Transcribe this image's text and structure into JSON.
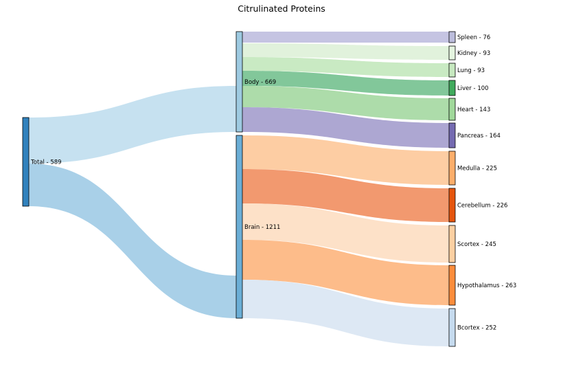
{
  "title": "Citrulinated Proteins",
  "nodes": [
    {
      "id": "total",
      "label": "Total - 589",
      "color": "#3182bd"
    },
    {
      "id": "body",
      "label": "Body - 669",
      "color": "#9ecae1"
    },
    {
      "id": "brain",
      "label": "Brain - 1211",
      "color": "#6baed6"
    },
    {
      "id": "spleen",
      "label": "Spleen - 76",
      "color": "#bcbddc"
    },
    {
      "id": "kidney",
      "label": "Kidney - 93",
      "color": "#e5f5e0"
    },
    {
      "id": "lung",
      "label": "Lung - 93",
      "color": "#c7e9c0"
    },
    {
      "id": "liver",
      "label": "Liver - 100",
      "color": "#41ab5d"
    },
    {
      "id": "heart",
      "label": "Heart - 143",
      "color": "#a1d99b"
    },
    {
      "id": "pancreas",
      "label": "Pancreas - 164",
      "color": "#756bb1"
    },
    {
      "id": "medulla",
      "label": "Medulla - 225",
      "color": "#fdae6b"
    },
    {
      "id": "cerebellum",
      "label": "Cerebellum - 226",
      "color": "#e6550d"
    },
    {
      "id": "scortex",
      "label": "Scortex - 245",
      "color": "#fdd0a2"
    },
    {
      "id": "hypothalamus",
      "label": "Hypothalamus - 263",
      "color": "#fd8d3c"
    },
    {
      "id": "bcortex",
      "label": "Bcortex - 252",
      "color": "#c6dbef"
    }
  ],
  "links": [
    {
      "source": "total",
      "target": "body",
      "value": 589,
      "color": "#c6e1f0"
    },
    {
      "source": "total",
      "target": "brain",
      "value": 589,
      "color": "#a9d0e8"
    },
    {
      "source": "body",
      "target": "spleen",
      "value": 76,
      "color": "#c5c4e2"
    },
    {
      "source": "body",
      "target": "kidney",
      "value": 93,
      "color": "#e1f2dc"
    },
    {
      "source": "body",
      "target": "lung",
      "value": 93,
      "color": "#c9eac3"
    },
    {
      "source": "body",
      "target": "liver",
      "value": 100,
      "color": "#82c79a"
    },
    {
      "source": "body",
      "target": "heart",
      "value": 143,
      "color": "#addcaa"
    },
    {
      "source": "body",
      "target": "pancreas",
      "value": 164,
      "color": "#ada7d2"
    },
    {
      "source": "brain",
      "target": "medulla",
      "value": 225,
      "color": "#fdcda3"
    },
    {
      "source": "brain",
      "target": "cerebellum",
      "value": 226,
      "color": "#f2996f"
    },
    {
      "source": "brain",
      "target": "scortex",
      "value": 245,
      "color": "#fde1c8"
    },
    {
      "source": "brain",
      "target": "hypothalamus",
      "value": 263,
      "color": "#fdbc8a"
    },
    {
      "source": "brain",
      "target": "bcortex",
      "value": 252,
      "color": "#dde8f4"
    }
  ]
}
